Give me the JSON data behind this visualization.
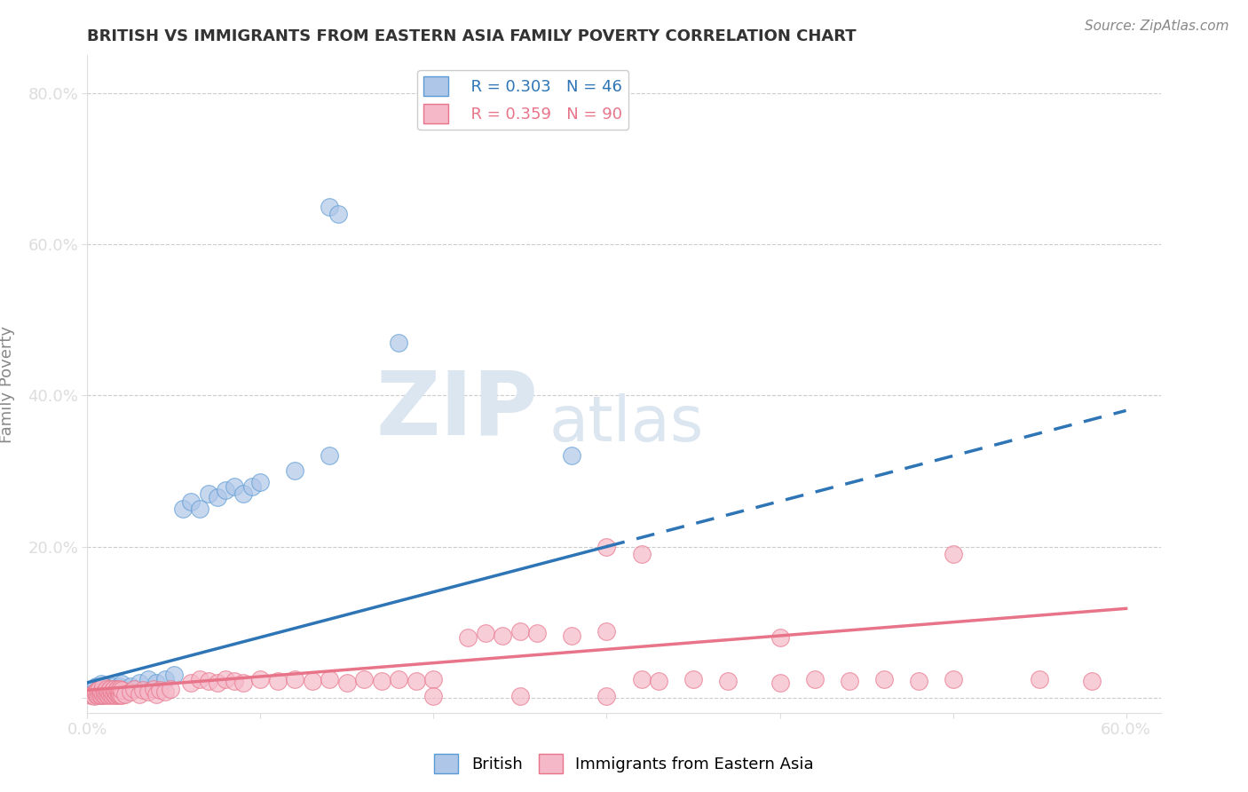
{
  "title": "BRITISH VS IMMIGRANTS FROM EASTERN ASIA FAMILY POVERTY CORRELATION CHART",
  "source_text": "Source: ZipAtlas.com",
  "ylabel": "Family Poverty",
  "xlim": [
    0.0,
    0.62
  ],
  "ylim": [
    -0.02,
    0.85
  ],
  "xtick_positions": [
    0.0,
    0.1,
    0.2,
    0.3,
    0.4,
    0.5,
    0.6
  ],
  "xticklabels": [
    "0.0%",
    "",
    "",
    "",
    "",
    "",
    "60.0%"
  ],
  "ytick_positions": [
    0.0,
    0.2,
    0.4,
    0.6,
    0.8
  ],
  "yticklabels": [
    "",
    "20.0%",
    "40.0%",
    "60.0%",
    "80.0%"
  ],
  "legend_british_R": "0.303",
  "legend_british_N": "46",
  "legend_eastern_R": "0.359",
  "legend_eastern_N": "90",
  "british_fill_color": "#aec6e8",
  "eastern_fill_color": "#f5b8c8",
  "british_edge_color": "#5b9bd5",
  "eastern_edge_color": "#e8748a",
  "british_line_color": "#2e75b6",
  "eastern_line_color": "#e8748a",
  "british_line_solid_end": 0.3,
  "british_line_dashed_end": 0.6,
  "british_line_start_y": 0.02,
  "british_line_slope": 0.6,
  "eastern_line_start_y": 0.01,
  "eastern_line_slope": 0.18,
  "background_color": "#ffffff",
  "grid_color": "#cccccc",
  "title_color": "#333333",
  "axis_label_color": "#888888",
  "tick_color": "#4472c4",
  "watermark_zip": "ZIP",
  "watermark_atlas": "atlas",
  "watermark_color": "#dce6f1",
  "british_scatter": [
    [
      0.002,
      0.005
    ],
    [
      0.003,
      0.01
    ],
    [
      0.004,
      0.003
    ],
    [
      0.005,
      0.008
    ],
    [
      0.005,
      0.015
    ],
    [
      0.006,
      0.005
    ],
    [
      0.007,
      0.012
    ],
    [
      0.008,
      0.003
    ],
    [
      0.008,
      0.018
    ],
    [
      0.009,
      0.008
    ],
    [
      0.01,
      0.005
    ],
    [
      0.01,
      0.015
    ],
    [
      0.011,
      0.01
    ],
    [
      0.012,
      0.005
    ],
    [
      0.013,
      0.012
    ],
    [
      0.014,
      0.008
    ],
    [
      0.015,
      0.015
    ],
    [
      0.015,
      0.005
    ],
    [
      0.016,
      0.012
    ],
    [
      0.017,
      0.008
    ],
    [
      0.018,
      0.015
    ],
    [
      0.019,
      0.01
    ],
    [
      0.02,
      0.018
    ],
    [
      0.02,
      0.005
    ],
    [
      0.025,
      0.015
    ],
    [
      0.03,
      0.02
    ],
    [
      0.035,
      0.025
    ],
    [
      0.04,
      0.02
    ],
    [
      0.045,
      0.025
    ],
    [
      0.05,
      0.03
    ],
    [
      0.055,
      0.25
    ],
    [
      0.06,
      0.26
    ],
    [
      0.065,
      0.25
    ],
    [
      0.07,
      0.27
    ],
    [
      0.075,
      0.265
    ],
    [
      0.08,
      0.275
    ],
    [
      0.085,
      0.28
    ],
    [
      0.09,
      0.27
    ],
    [
      0.095,
      0.28
    ],
    [
      0.1,
      0.285
    ],
    [
      0.12,
      0.3
    ],
    [
      0.14,
      0.32
    ],
    [
      0.14,
      0.65
    ],
    [
      0.145,
      0.64
    ],
    [
      0.18,
      0.47
    ],
    [
      0.28,
      0.32
    ]
  ],
  "eastern_scatter": [
    [
      0.002,
      0.003
    ],
    [
      0.003,
      0.005
    ],
    [
      0.004,
      0.002
    ],
    [
      0.005,
      0.004
    ],
    [
      0.005,
      0.008
    ],
    [
      0.006,
      0.003
    ],
    [
      0.006,
      0.01
    ],
    [
      0.007,
      0.005
    ],
    [
      0.007,
      0.012
    ],
    [
      0.008,
      0.003
    ],
    [
      0.008,
      0.008
    ],
    [
      0.009,
      0.005
    ],
    [
      0.009,
      0.015
    ],
    [
      0.01,
      0.003
    ],
    [
      0.01,
      0.008
    ],
    [
      0.011,
      0.005
    ],
    [
      0.011,
      0.012
    ],
    [
      0.012,
      0.003
    ],
    [
      0.012,
      0.008
    ],
    [
      0.013,
      0.005
    ],
    [
      0.013,
      0.012
    ],
    [
      0.014,
      0.003
    ],
    [
      0.014,
      0.008
    ],
    [
      0.015,
      0.005
    ],
    [
      0.015,
      0.012
    ],
    [
      0.016,
      0.003
    ],
    [
      0.016,
      0.008
    ],
    [
      0.017,
      0.005
    ],
    [
      0.017,
      0.012
    ],
    [
      0.018,
      0.003
    ],
    [
      0.018,
      0.008
    ],
    [
      0.019,
      0.005
    ],
    [
      0.019,
      0.012
    ],
    [
      0.02,
      0.003
    ],
    [
      0.02,
      0.01
    ],
    [
      0.022,
      0.005
    ],
    [
      0.025,
      0.008
    ],
    [
      0.027,
      0.012
    ],
    [
      0.03,
      0.005
    ],
    [
      0.032,
      0.01
    ],
    [
      0.035,
      0.008
    ],
    [
      0.038,
      0.012
    ],
    [
      0.04,
      0.005
    ],
    [
      0.042,
      0.01
    ],
    [
      0.045,
      0.008
    ],
    [
      0.048,
      0.012
    ],
    [
      0.06,
      0.02
    ],
    [
      0.065,
      0.025
    ],
    [
      0.07,
      0.022
    ],
    [
      0.075,
      0.02
    ],
    [
      0.08,
      0.025
    ],
    [
      0.085,
      0.022
    ],
    [
      0.09,
      0.02
    ],
    [
      0.1,
      0.025
    ],
    [
      0.11,
      0.022
    ],
    [
      0.12,
      0.025
    ],
    [
      0.13,
      0.022
    ],
    [
      0.14,
      0.025
    ],
    [
      0.15,
      0.02
    ],
    [
      0.16,
      0.025
    ],
    [
      0.17,
      0.022
    ],
    [
      0.18,
      0.025
    ],
    [
      0.19,
      0.022
    ],
    [
      0.2,
      0.025
    ],
    [
      0.22,
      0.08
    ],
    [
      0.23,
      0.085
    ],
    [
      0.24,
      0.082
    ],
    [
      0.25,
      0.088
    ],
    [
      0.26,
      0.085
    ],
    [
      0.28,
      0.082
    ],
    [
      0.3,
      0.088
    ],
    [
      0.32,
      0.025
    ],
    [
      0.33,
      0.022
    ],
    [
      0.35,
      0.025
    ],
    [
      0.37,
      0.022
    ],
    [
      0.3,
      0.2
    ],
    [
      0.32,
      0.19
    ],
    [
      0.4,
      0.02
    ],
    [
      0.42,
      0.025
    ],
    [
      0.44,
      0.022
    ],
    [
      0.46,
      0.025
    ],
    [
      0.48,
      0.022
    ],
    [
      0.5,
      0.025
    ],
    [
      0.2,
      0.002
    ],
    [
      0.25,
      0.002
    ],
    [
      0.3,
      0.002
    ],
    [
      0.4,
      0.08
    ],
    [
      0.5,
      0.19
    ],
    [
      0.55,
      0.025
    ],
    [
      0.58,
      0.022
    ]
  ]
}
